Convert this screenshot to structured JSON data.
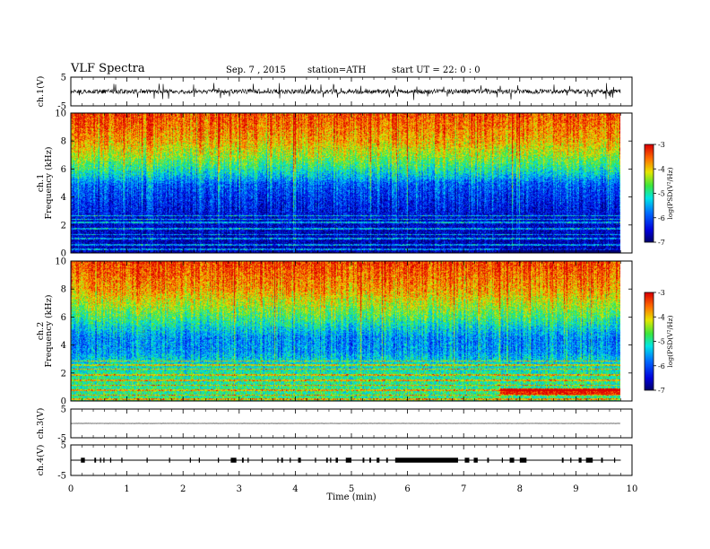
{
  "header": {
    "title": "VLF  Spectra",
    "date": "Sep. 7  , 2015",
    "station": "station=ATH",
    "start": "start  UT  =   22: 0  : 0"
  },
  "chart_data": {
    "type": "heatmap",
    "title": "VLF  Spectra",
    "xlabel": "Time  (min)",
    "xlim": [
      0,
      10
    ],
    "xticks": [
      "0",
      "1",
      "2",
      "3",
      "4",
      "5",
      "6",
      "7",
      "8",
      "9",
      "10"
    ],
    "data_extent_min": 9.8,
    "panels": [
      {
        "name": "ch1-waveform",
        "ylabel": "ch.1(V)",
        "ylim": [
          -5,
          5
        ],
        "yticks": [
          "5",
          "-5"
        ],
        "kind": "waveform",
        "amplitude_v": 1.0
      },
      {
        "name": "ch1-spectrogram",
        "ylabel_top": "ch.1",
        "ylabel": "Frequency  (kHz)",
        "ylim": [
          0,
          10
        ],
        "yticks": [
          "0",
          "2",
          "4",
          "6",
          "8",
          "10"
        ],
        "kind": "spectrogram",
        "profile": [
          [
            0.0,
            -6.8
          ],
          [
            2.0,
            -6.6
          ],
          [
            3.0,
            -6.4
          ],
          [
            4.0,
            -6.2
          ],
          [
            5.0,
            -5.9
          ],
          [
            5.5,
            -5.4
          ],
          [
            6.2,
            -4.9
          ],
          [
            7.0,
            -4.4
          ],
          [
            8.0,
            -3.9
          ],
          [
            9.0,
            -3.6
          ],
          [
            10.0,
            -3.4
          ]
        ],
        "hum_lines_khz": [
          0.3,
          0.6,
          1.05,
          1.35,
          1.75,
          2.2,
          2.45,
          2.7
        ],
        "colorbar": {
          "label": "log(PSD(V²/Hz)",
          "range": [
            -7,
            -3
          ],
          "ticks": [
            "-3",
            "-4",
            "-5",
            "-6",
            "-7"
          ]
        }
      },
      {
        "name": "ch2-spectrogram",
        "ylabel_top": "ch.2",
        "ylabel": "Frequency  (kHz)",
        "ylim": [
          0,
          10
        ],
        "yticks": [
          "0",
          "2",
          "4",
          "6",
          "8",
          "10"
        ],
        "kind": "spectrogram",
        "profile": [
          [
            0.0,
            -4.9
          ],
          [
            1.0,
            -4.9
          ],
          [
            2.0,
            -5.0
          ],
          [
            3.0,
            -5.3
          ],
          [
            3.5,
            -5.6
          ],
          [
            4.5,
            -5.7
          ],
          [
            5.2,
            -5.3
          ],
          [
            6.0,
            -4.8
          ],
          [
            7.0,
            -4.3
          ],
          [
            8.0,
            -3.8
          ],
          [
            10.0,
            -3.3
          ]
        ],
        "hum_lines_khz": [
          0.15,
          0.45,
          0.8,
          1.15,
          1.5,
          1.9,
          2.3,
          2.6,
          2.9
        ],
        "colorbar": {
          "label": "log(PSD(V²/Hz)",
          "range": [
            -7,
            -3
          ],
          "ticks": [
            "-3",
            "-4",
            "-5",
            "-6",
            "-7"
          ]
        }
      },
      {
        "name": "ch3-waveform",
        "ylabel": "ch.3(V)",
        "ylim": [
          -5,
          5
        ],
        "yticks": [
          "5",
          "-5"
        ],
        "kind": "waveform",
        "amplitude_v": 0.05
      },
      {
        "name": "ch4-waveform",
        "ylabel": "ch.4(V)",
        "ylim": [
          -5,
          5
        ],
        "yticks": [
          "5",
          "-5"
        ],
        "kind": "pulses",
        "level_v": 0.0,
        "pulses_min": [
          [
            0.18,
            0.25
          ],
          [
            0.42,
            0.45
          ],
          [
            0.52,
            0.54
          ],
          [
            0.58,
            0.6
          ],
          [
            0.7,
            0.72
          ],
          [
            0.9,
            0.92
          ],
          [
            1.35,
            1.37
          ],
          [
            1.75,
            1.77
          ],
          [
            2.12,
            2.14
          ],
          [
            2.28,
            2.3
          ],
          [
            2.62,
            2.64
          ],
          [
            2.85,
            2.95
          ],
          [
            3.05,
            3.08
          ],
          [
            3.15,
            3.17
          ],
          [
            3.4,
            3.42
          ],
          [
            3.68,
            3.7
          ],
          [
            3.75,
            3.78
          ],
          [
            3.9,
            3.92
          ],
          [
            4.05,
            4.1
          ],
          [
            4.35,
            4.37
          ],
          [
            4.55,
            4.58
          ],
          [
            4.62,
            4.64
          ],
          [
            4.72,
            4.76
          ],
          [
            4.9,
            5.0
          ],
          [
            5.2,
            5.23
          ],
          [
            5.32,
            5.35
          ],
          [
            5.45,
            5.5
          ],
          [
            5.62,
            5.65
          ],
          [
            5.78,
            6.9
          ],
          [
            7.02,
            7.1
          ],
          [
            7.18,
            7.25
          ],
          [
            7.42,
            7.45
          ],
          [
            7.68,
            7.7
          ],
          [
            7.82,
            7.9
          ],
          [
            8.0,
            8.12
          ],
          [
            8.75,
            8.78
          ],
          [
            8.9,
            8.92
          ],
          [
            9.05,
            9.1
          ],
          [
            9.18,
            9.3
          ],
          [
            9.45,
            9.48
          ],
          [
            9.68,
            9.7
          ]
        ]
      }
    ]
  }
}
